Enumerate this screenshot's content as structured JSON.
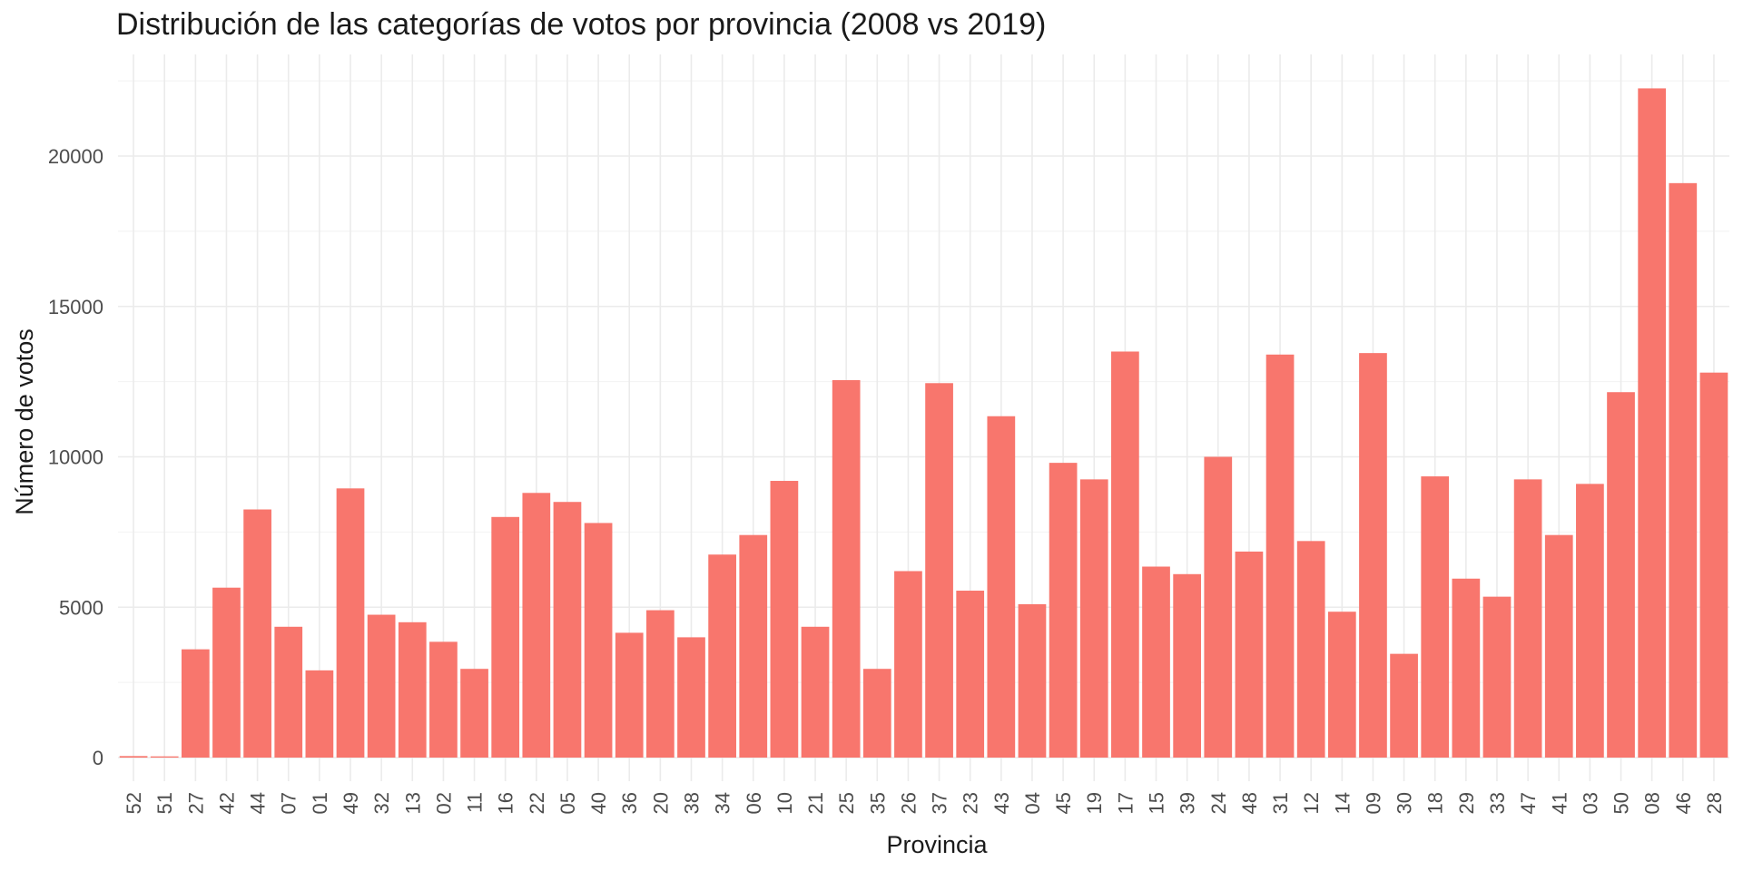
{
  "chart_data": {
    "type": "bar",
    "title": "Distribución de las categorías de votos por provincia (2008 vs 2019)",
    "xlabel": "Provincia",
    "ylabel": "Número de votos",
    "ylim": [
      0,
      22500
    ],
    "yticks": [
      0,
      5000,
      10000,
      15000,
      20000
    ],
    "ytick_labels": [
      "0",
      "5000",
      "10000",
      "15000",
      "20000"
    ],
    "grid": true,
    "bar_color": "#F8766D",
    "categories": [
      "52",
      "51",
      "27",
      "42",
      "44",
      "07",
      "01",
      "49",
      "32",
      "13",
      "02",
      "11",
      "16",
      "22",
      "05",
      "40",
      "36",
      "20",
      "38",
      "34",
      "06",
      "10",
      "21",
      "25",
      "35",
      "26",
      "37",
      "23",
      "43",
      "04",
      "45",
      "19",
      "17",
      "15",
      "39",
      "24",
      "48",
      "31",
      "12",
      "14",
      "09",
      "30",
      "18",
      "29",
      "33",
      "47",
      "41",
      "03",
      "50",
      "08",
      "46",
      "28"
    ],
    "values": [
      50,
      40,
      3600,
      5650,
      8250,
      4350,
      2900,
      8950,
      4750,
      4500,
      3850,
      2950,
      8000,
      8800,
      8500,
      7800,
      4150,
      4900,
      4000,
      6750,
      7400,
      9200,
      4350,
      12550,
      2950,
      6200,
      12450,
      5550,
      11350,
      5100,
      9800,
      9250,
      13500,
      6350,
      6100,
      10000,
      6850,
      13400,
      7200,
      4850,
      13450,
      3450,
      9350,
      5950,
      5350,
      9250,
      7400,
      9100,
      12150,
      22250,
      19100,
      12800
    ]
  }
}
